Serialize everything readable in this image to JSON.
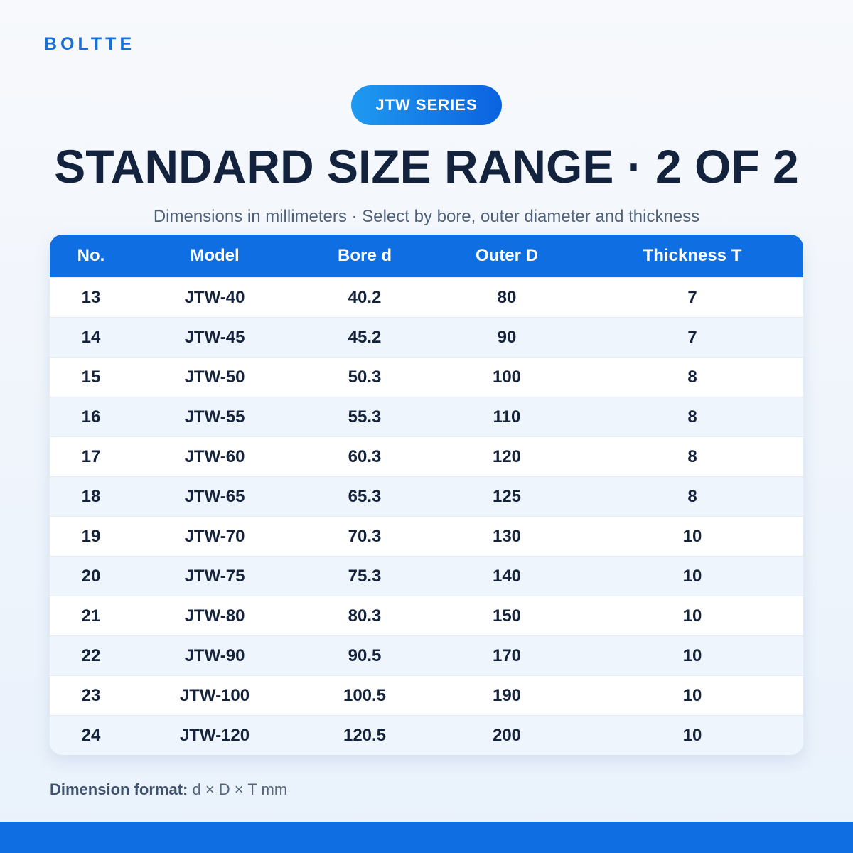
{
  "brand": "BOLTTE",
  "badge": "JTW SERIES",
  "title": "STANDARD SIZE RANGE · 2 OF 2",
  "subtitle": "Dimensions in millimeters · Select by bore, outer diameter and thickness",
  "table": {
    "columns": [
      "No.",
      "Model",
      "Bore d",
      "Outer D",
      "Thickness T"
    ],
    "rows": [
      [
        13,
        "JTW-40",
        40.2,
        80,
        7
      ],
      [
        14,
        "JTW-45",
        45.2,
        90,
        7
      ],
      [
        15,
        "JTW-50",
        50.3,
        100,
        8
      ],
      [
        16,
        "JTW-55",
        55.3,
        110,
        8
      ],
      [
        17,
        "JTW-60",
        60.3,
        120,
        8
      ],
      [
        18,
        "JTW-65",
        65.3,
        125,
        8
      ],
      [
        19,
        "JTW-70",
        70.3,
        130,
        10
      ],
      [
        20,
        "JTW-75",
        75.3,
        140,
        10
      ],
      [
        21,
        "JTW-80",
        80.3,
        150,
        10
      ],
      [
        22,
        "JTW-90",
        90.5,
        170,
        10
      ],
      [
        23,
        "JTW-100",
        100.5,
        190,
        10
      ],
      [
        24,
        "JTW-120",
        120.5,
        200,
        10
      ]
    ]
  },
  "footer": {
    "label": "Dimension format:",
    "text": "d × D × T mm"
  }
}
